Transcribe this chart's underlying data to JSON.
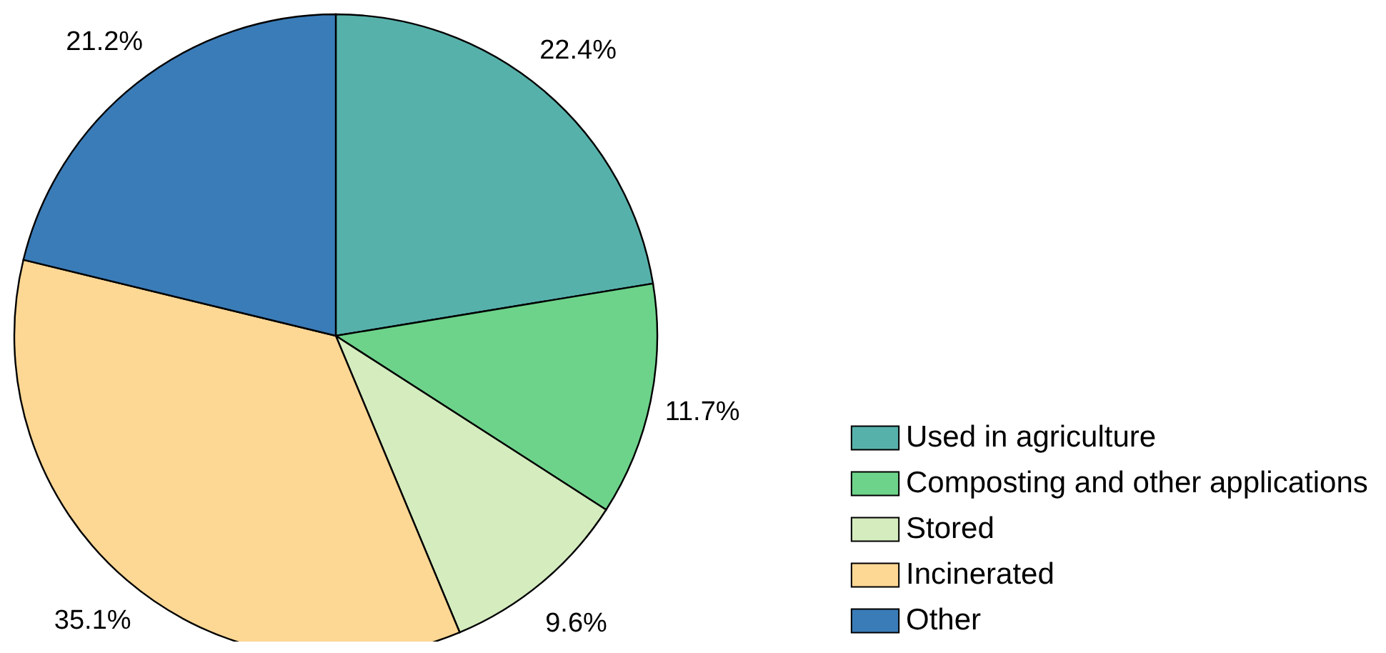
{
  "chart_data": {
    "type": "pie",
    "categories": [
      "Used in agriculture",
      "Composting and other applications",
      "Stored",
      "Incinerated",
      "Other"
    ],
    "values": [
      22.4,
      11.7,
      9.6,
      35.1,
      21.2
    ],
    "colors": [
      "#57b1ab",
      "#6dd38a",
      "#d5ecbe",
      "#fdd794",
      "#3a7cb8"
    ],
    "value_labels": [
      "22.4%",
      "11.7%",
      "9.6%",
      "35.1%",
      "21.2%"
    ],
    "legend": "bottom right"
  }
}
